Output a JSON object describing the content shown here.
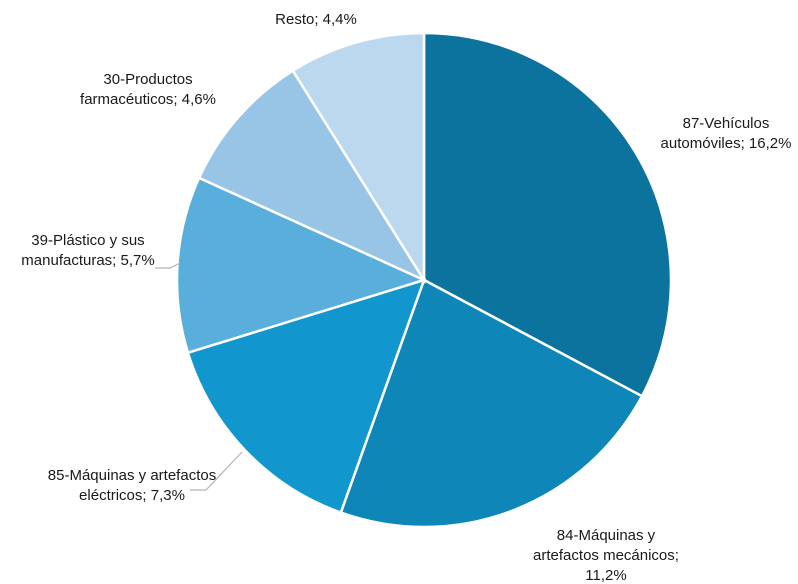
{
  "chart_data": {
    "type": "pie",
    "title": "",
    "unit": "%",
    "series": [
      {
        "slices": [
          {
            "name": "87-Vehículos automóviles",
            "value": 16.2,
            "color": "#0b739e",
            "label_lines": [
              "87-Vehículos",
              "automóviles; 16,2%"
            ]
          },
          {
            "name": "84-Máquinas y artefactos mecánicos",
            "value": 11.2,
            "color": "#0e86b8",
            "label_lines": [
              "84-Máquinas y",
              "artefactos mecánicos;",
              "11,2%"
            ]
          },
          {
            "name": "85-Máquinas y artefactos eléctricos",
            "value": 7.3,
            "color": "#1197cd",
            "label_lines": [
              "85-Máquinas y artefactos",
              "eléctricos; 7,3%"
            ]
          },
          {
            "name": "39-Plástico y sus manufacturas",
            "value": 5.7,
            "color": "#5aaedb",
            "label_lines": [
              "39-Plástico y sus",
              "manufacturas; 5,7%"
            ]
          },
          {
            "name": "30-Productos farmacéuticos",
            "value": 4.6,
            "color": "#98c4e5",
            "label_lines": [
              "30-Productos",
              "farmacéuticos; 4,6%"
            ]
          },
          {
            "name": "Resto",
            "value": 4.4,
            "color": "#bcd8ee",
            "label_lines": [
              "Resto; 4,4%"
            ]
          }
        ]
      }
    ],
    "start_angle": "12 o'clock",
    "direction": "clockwise",
    "legend": "none"
  }
}
